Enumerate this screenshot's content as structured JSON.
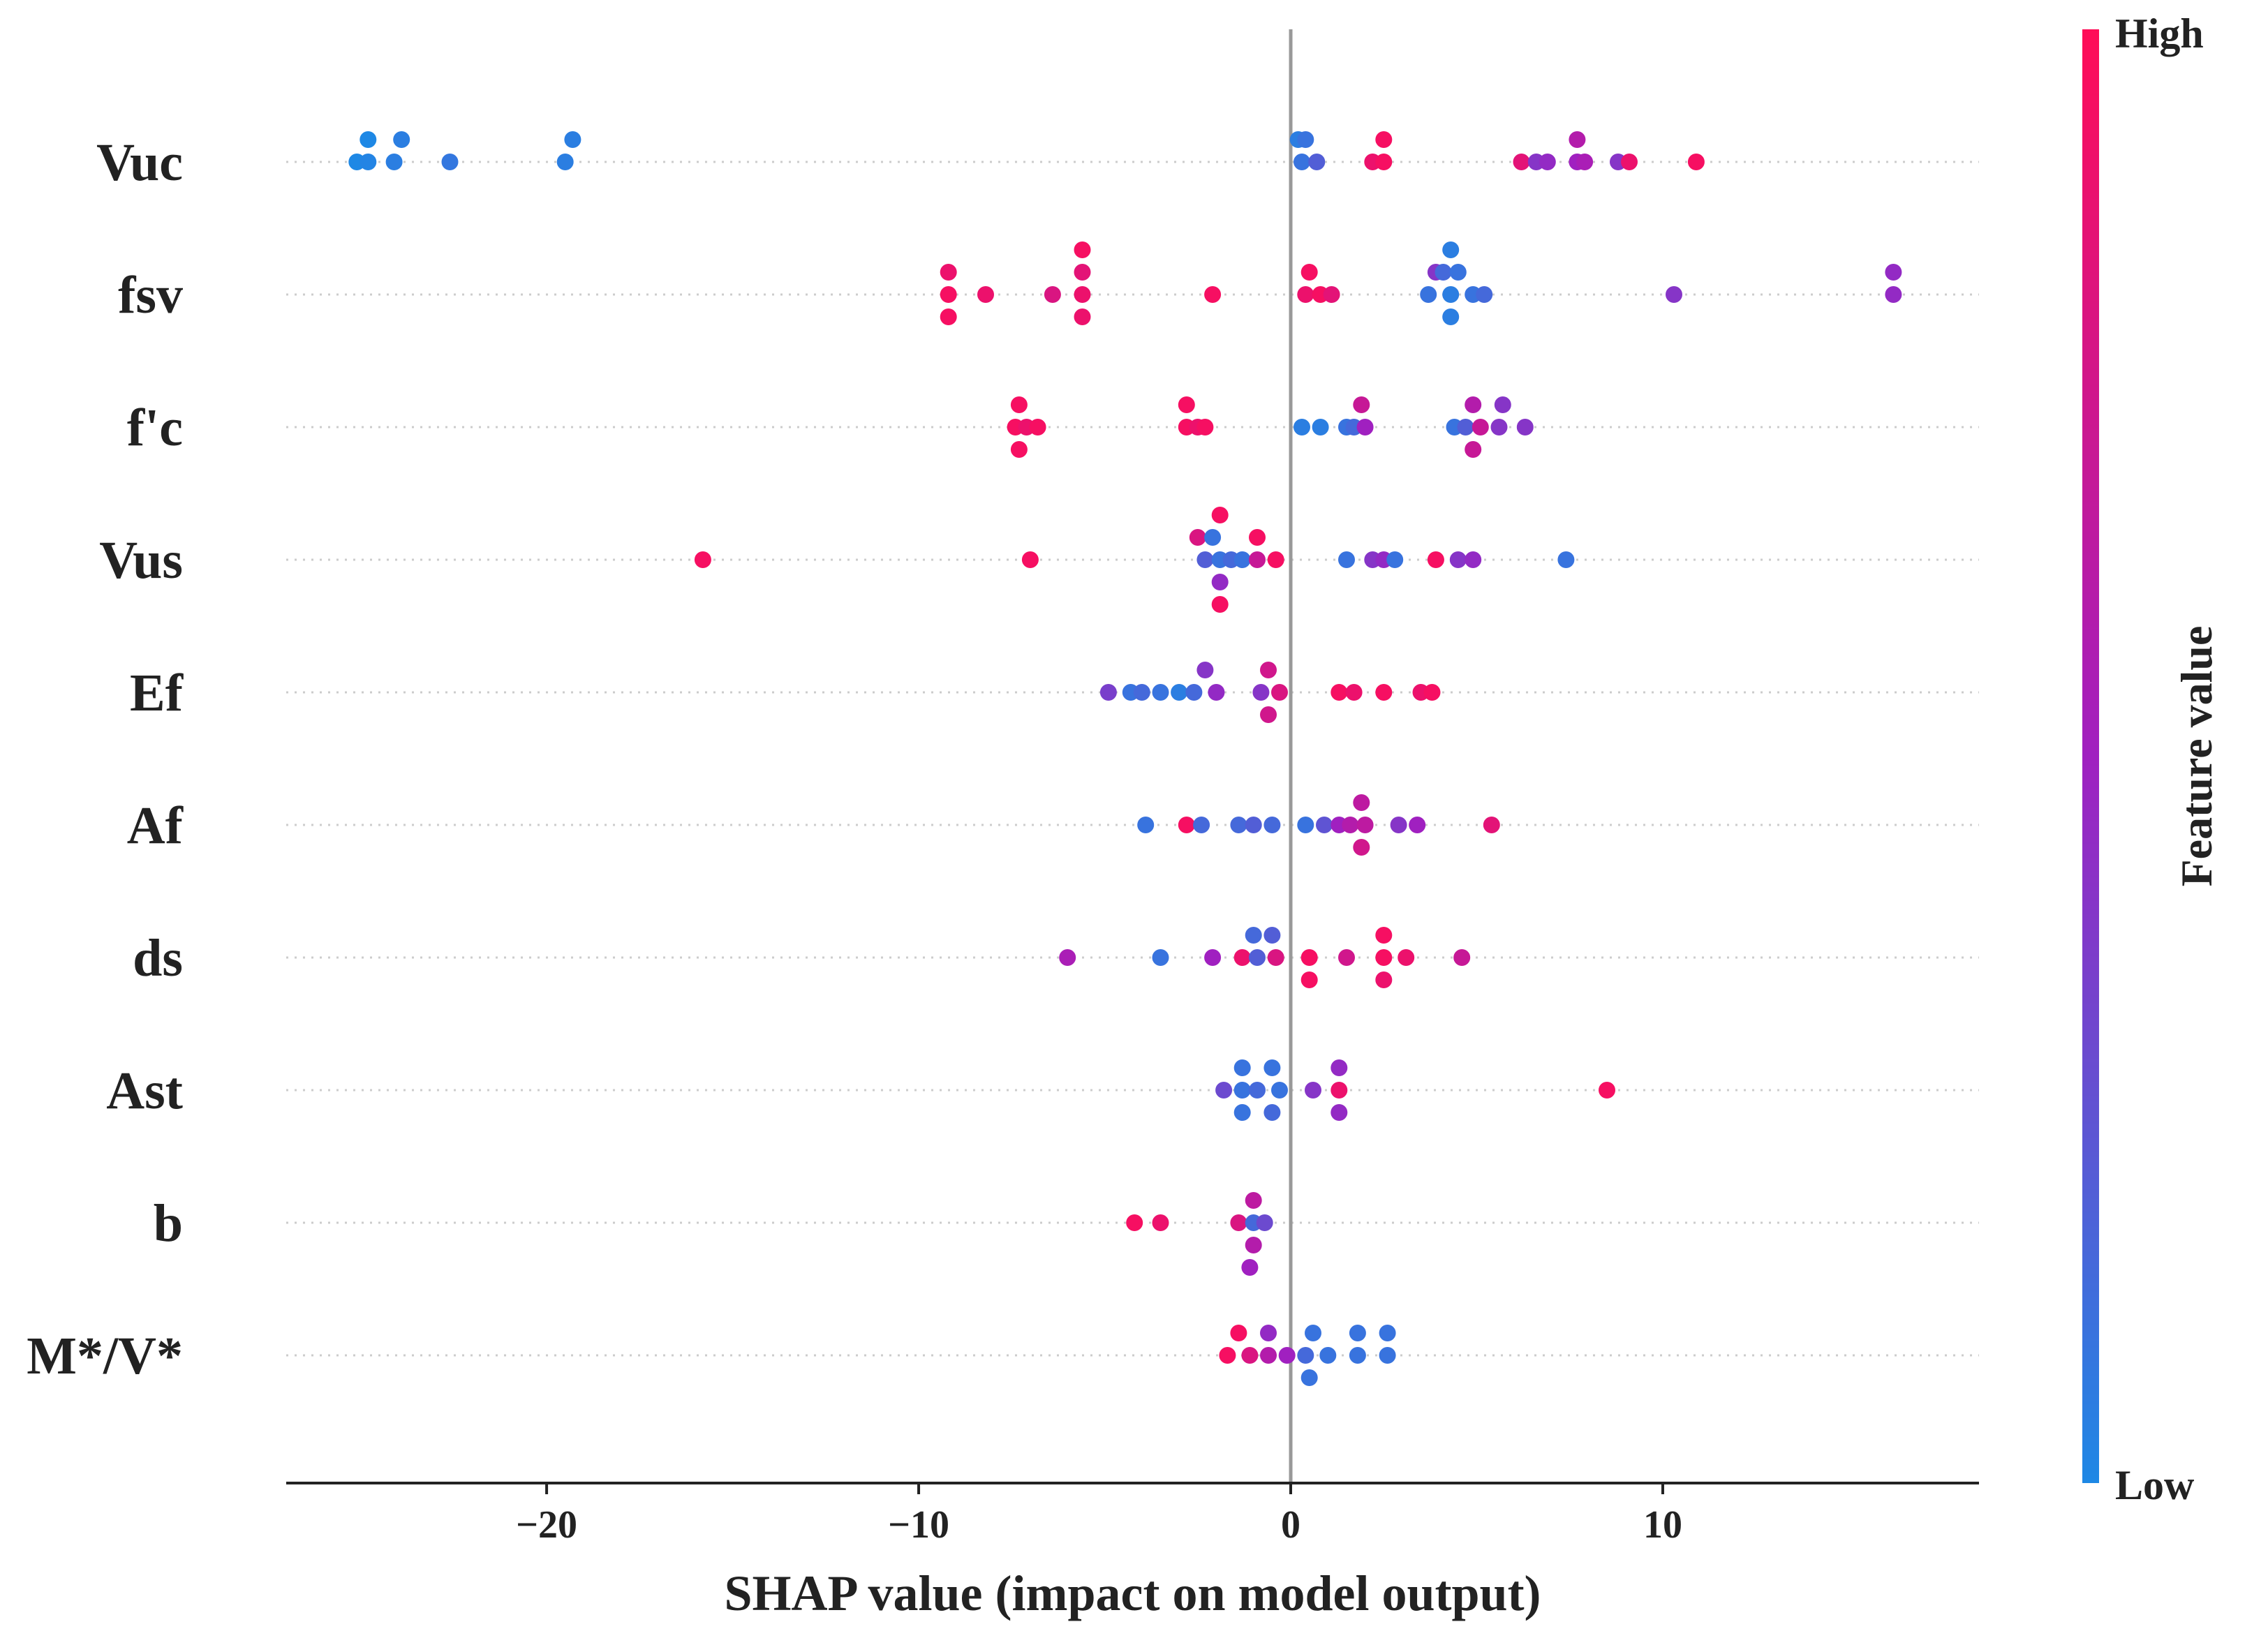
{
  "chart_data": {
    "type": "scatter",
    "subtype": "shap-beeswarm",
    "title": "",
    "xlabel": "SHAP value (impact on model output)",
    "ylabel": "",
    "xlim": [
      -27,
      18.5
    ],
    "xticks": [
      -20,
      -10,
      0,
      10
    ],
    "xtick_labels": [
      "−20",
      "−10",
      "0",
      "10"
    ],
    "grid": false,
    "colorbar": {
      "title": "Feature value",
      "high_label": "High",
      "low_label": "Low",
      "low_color": "#1e88e5",
      "high_color": "#ff0d57"
    },
    "colors": {
      "low": "#1e88e5",
      "mid": "#a020c0",
      "high": "#ff0d57",
      "zero_line": "#999999",
      "axis": "#222222"
    },
    "features": [
      {
        "name": "Vuc",
        "points": [
          {
            "x": -24.8,
            "o": -1,
            "v": 0.0
          },
          {
            "x": -23.9,
            "o": -1,
            "v": 0.05
          },
          {
            "x": -19.3,
            "o": -1,
            "v": 0.05
          },
          {
            "x": -25.1,
            "o": 0,
            "v": 0.0
          },
          {
            "x": -24.8,
            "o": 0,
            "v": 0.02
          },
          {
            "x": -24.1,
            "o": 0,
            "v": 0.05
          },
          {
            "x": -22.6,
            "o": 0,
            "v": 0.08
          },
          {
            "x": -19.5,
            "o": 0,
            "v": 0.05
          },
          {
            "x": 0.2,
            "o": -1,
            "v": 0.05
          },
          {
            "x": 0.4,
            "o": -1,
            "v": 0.1
          },
          {
            "x": 2.5,
            "o": -1,
            "v": 0.95
          },
          {
            "x": 7.7,
            "o": -1,
            "v": 0.6
          },
          {
            "x": 0.3,
            "o": 0,
            "v": 0.1
          },
          {
            "x": 0.7,
            "o": 0,
            "v": 0.2
          },
          {
            "x": 2.2,
            "o": 0,
            "v": 0.9
          },
          {
            "x": 2.5,
            "o": 0,
            "v": 0.95
          },
          {
            "x": 6.2,
            "o": 0,
            "v": 0.85
          },
          {
            "x": 6.6,
            "o": 0,
            "v": 0.4
          },
          {
            "x": 6.9,
            "o": 0,
            "v": 0.45
          },
          {
            "x": 7.7,
            "o": 0,
            "v": 0.5
          },
          {
            "x": 7.9,
            "o": 0,
            "v": 0.55
          },
          {
            "x": 8.8,
            "o": 0,
            "v": 0.4
          },
          {
            "x": 9.1,
            "o": 0,
            "v": 0.9
          },
          {
            "x": 10.9,
            "o": 0,
            "v": 0.95
          }
        ]
      },
      {
        "name": "fsv",
        "points": [
          {
            "x": -5.6,
            "o": -2,
            "v": 0.95
          },
          {
            "x": -9.2,
            "o": -1,
            "v": 0.9
          },
          {
            "x": -5.6,
            "o": -1,
            "v": 0.85
          },
          {
            "x": 0.5,
            "o": -1,
            "v": 0.95
          },
          {
            "x": 3.9,
            "o": -1,
            "v": 0.4
          },
          {
            "x": 16.2,
            "o": -1,
            "v": 0.45
          },
          {
            "x": 4.3,
            "o": -2,
            "v": 0.05
          },
          {
            "x": 4.1,
            "o": -1,
            "v": 0.15
          },
          {
            "x": 4.5,
            "o": -1,
            "v": 0.1
          },
          {
            "x": -9.2,
            "o": 0,
            "v": 0.95
          },
          {
            "x": -8.2,
            "o": 0,
            "v": 0.9
          },
          {
            "x": -6.4,
            "o": 0,
            "v": 0.8
          },
          {
            "x": -5.6,
            "o": 0,
            "v": 0.9
          },
          {
            "x": -2.1,
            "o": 0,
            "v": 0.95
          },
          {
            "x": 0.4,
            "o": 0,
            "v": 0.9
          },
          {
            "x": 0.8,
            "o": 0,
            "v": 0.95
          },
          {
            "x": 1.1,
            "o": 0,
            "v": 0.85
          },
          {
            "x": 3.7,
            "o": 0,
            "v": 0.1
          },
          {
            "x": 4.3,
            "o": 0,
            "v": 0.05
          },
          {
            "x": 4.9,
            "o": 0,
            "v": 0.1
          },
          {
            "x": 5.2,
            "o": 0,
            "v": 0.15
          },
          {
            "x": 10.3,
            "o": 0,
            "v": 0.4
          },
          {
            "x": 16.2,
            "o": 0,
            "v": 0.45
          },
          {
            "x": -9.2,
            "o": 1,
            "v": 0.95
          },
          {
            "x": -5.6,
            "o": 1,
            "v": 0.9
          },
          {
            "x": 4.3,
            "o": 1,
            "v": 0.05
          }
        ]
      },
      {
        "name": "f'c",
        "points": [
          {
            "x": -7.3,
            "o": -1,
            "v": 0.95
          },
          {
            "x": -2.8,
            "o": -1,
            "v": 0.95
          },
          {
            "x": 1.9,
            "o": -1,
            "v": 0.7
          },
          {
            "x": 4.9,
            "o": -1,
            "v": 0.6
          },
          {
            "x": 5.7,
            "o": -1,
            "v": 0.4
          },
          {
            "x": -7.4,
            "o": 0,
            "v": 0.95
          },
          {
            "x": -7.1,
            "o": 0,
            "v": 0.9
          },
          {
            "x": -6.8,
            "o": 0,
            "v": 0.95
          },
          {
            "x": -2.8,
            "o": 0,
            "v": 0.95
          },
          {
            "x": -2.5,
            "o": 0,
            "v": 0.9
          },
          {
            "x": -2.3,
            "o": 0,
            "v": 0.95
          },
          {
            "x": 0.3,
            "o": 0,
            "v": 0.05
          },
          {
            "x": 0.8,
            "o": 0,
            "v": 0.05
          },
          {
            "x": 1.5,
            "o": 0,
            "v": 0.1
          },
          {
            "x": 1.7,
            "o": 0,
            "v": 0.15
          },
          {
            "x": 2.0,
            "o": 0,
            "v": 0.5
          },
          {
            "x": 4.4,
            "o": 0,
            "v": 0.1
          },
          {
            "x": 4.7,
            "o": 0,
            "v": 0.2
          },
          {
            "x": 5.1,
            "o": 0,
            "v": 0.7
          },
          {
            "x": 5.6,
            "o": 0,
            "v": 0.4
          },
          {
            "x": 6.3,
            "o": 0,
            "v": 0.4
          },
          {
            "x": -7.3,
            "o": 1,
            "v": 0.95
          },
          {
            "x": 4.9,
            "o": 1,
            "v": 0.7
          }
        ]
      },
      {
        "name": "Vus",
        "points": [
          {
            "x": -1.9,
            "o": -2,
            "v": 0.95
          },
          {
            "x": -2.5,
            "o": -1,
            "v": 0.8
          },
          {
            "x": -2.1,
            "o": -1,
            "v": 0.1
          },
          {
            "x": -0.9,
            "o": -1,
            "v": 0.95
          },
          {
            "x": -15.8,
            "o": 0,
            "v": 0.95
          },
          {
            "x": -7.0,
            "o": 0,
            "v": 0.95
          },
          {
            "x": -2.3,
            "o": 0,
            "v": 0.2
          },
          {
            "x": -1.9,
            "o": 0,
            "v": 0.1
          },
          {
            "x": -1.6,
            "o": 0,
            "v": 0.15
          },
          {
            "x": -1.3,
            "o": 0,
            "v": 0.1
          },
          {
            "x": -0.9,
            "o": 0,
            "v": 0.7
          },
          {
            "x": -0.4,
            "o": 0,
            "v": 0.95
          },
          {
            "x": 1.5,
            "o": 0,
            "v": 0.1
          },
          {
            "x": 2.2,
            "o": 0,
            "v": 0.4
          },
          {
            "x": 2.5,
            "o": 0,
            "v": 0.45
          },
          {
            "x": 2.8,
            "o": 0,
            "v": 0.1
          },
          {
            "x": 3.9,
            "o": 0,
            "v": 0.95
          },
          {
            "x": 4.5,
            "o": 0,
            "v": 0.4
          },
          {
            "x": 4.9,
            "o": 0,
            "v": 0.45
          },
          {
            "x": 7.4,
            "o": 0,
            "v": 0.1
          },
          {
            "x": -1.9,
            "o": 1,
            "v": 0.45
          },
          {
            "x": -1.9,
            "o": 2,
            "v": 0.95
          }
        ]
      },
      {
        "name": "Ef",
        "points": [
          {
            "x": -2.3,
            "o": -1,
            "v": 0.4
          },
          {
            "x": -0.6,
            "o": -1,
            "v": 0.75
          },
          {
            "x": -4.9,
            "o": 0,
            "v": 0.35
          },
          {
            "x": -4.3,
            "o": 0,
            "v": 0.1
          },
          {
            "x": -4.0,
            "o": 0,
            "v": 0.15
          },
          {
            "x": -3.5,
            "o": 0,
            "v": 0.1
          },
          {
            "x": -3.0,
            "o": 0,
            "v": 0.05
          },
          {
            "x": -2.6,
            "o": 0,
            "v": 0.15
          },
          {
            "x": -2.0,
            "o": 0,
            "v": 0.45
          },
          {
            "x": -0.8,
            "o": 0,
            "v": 0.4
          },
          {
            "x": -0.3,
            "o": 0,
            "v": 0.8
          },
          {
            "x": 1.3,
            "o": 0,
            "v": 0.95
          },
          {
            "x": 1.7,
            "o": 0,
            "v": 0.9
          },
          {
            "x": 2.5,
            "o": 0,
            "v": 0.95
          },
          {
            "x": 3.5,
            "o": 0,
            "v": 0.9
          },
          {
            "x": 3.8,
            "o": 0,
            "v": 0.95
          },
          {
            "x": -0.6,
            "o": 1,
            "v": 0.75
          }
        ]
      },
      {
        "name": "Af",
        "points": [
          {
            "x": 1.9,
            "o": -1,
            "v": 0.65
          },
          {
            "x": -3.9,
            "o": 0,
            "v": 0.1
          },
          {
            "x": -2.8,
            "o": 0,
            "v": 0.95
          },
          {
            "x": -2.4,
            "o": 0,
            "v": 0.15
          },
          {
            "x": -1.4,
            "o": 0,
            "v": 0.15
          },
          {
            "x": -1.0,
            "o": 0,
            "v": 0.2
          },
          {
            "x": -0.5,
            "o": 0,
            "v": 0.15
          },
          {
            "x": 0.4,
            "o": 0,
            "v": 0.1
          },
          {
            "x": 0.9,
            "o": 0,
            "v": 0.25
          },
          {
            "x": 1.3,
            "o": 0,
            "v": 0.5
          },
          {
            "x": 1.6,
            "o": 0,
            "v": 0.6
          },
          {
            "x": 2.0,
            "o": 0,
            "v": 0.65
          },
          {
            "x": 2.9,
            "o": 0,
            "v": 0.4
          },
          {
            "x": 3.4,
            "o": 0,
            "v": 0.5
          },
          {
            "x": 5.4,
            "o": 0,
            "v": 0.85
          },
          {
            "x": 1.9,
            "o": 1,
            "v": 0.75
          }
        ]
      },
      {
        "name": "ds",
        "points": [
          {
            "x": 2.5,
            "o": -1,
            "v": 0.95
          },
          {
            "x": -1.0,
            "o": -1,
            "v": 0.15
          },
          {
            "x": -0.5,
            "o": -1,
            "v": 0.2
          },
          {
            "x": -6.0,
            "o": 0,
            "v": 0.55
          },
          {
            "x": -3.5,
            "o": 0,
            "v": 0.1
          },
          {
            "x": -2.1,
            "o": 0,
            "v": 0.5
          },
          {
            "x": -1.3,
            "o": 0,
            "v": 0.9
          },
          {
            "x": -0.9,
            "o": 0,
            "v": 0.2
          },
          {
            "x": -0.4,
            "o": 0,
            "v": 0.8
          },
          {
            "x": 0.5,
            "o": 0,
            "v": 0.95
          },
          {
            "x": 1.5,
            "o": 0,
            "v": 0.75
          },
          {
            "x": 2.5,
            "o": 0,
            "v": 0.95
          },
          {
            "x": 3.1,
            "o": 0,
            "v": 0.9
          },
          {
            "x": 4.6,
            "o": 0,
            "v": 0.7
          },
          {
            "x": 0.5,
            "o": 1,
            "v": 0.95
          },
          {
            "x": 2.5,
            "o": 1,
            "v": 0.9
          }
        ]
      },
      {
        "name": "Ast",
        "points": [
          {
            "x": -1.3,
            "o": -1,
            "v": 0.1
          },
          {
            "x": -0.5,
            "o": -1,
            "v": 0.1
          },
          {
            "x": 1.3,
            "o": -1,
            "v": 0.45
          },
          {
            "x": -1.8,
            "o": 0,
            "v": 0.3
          },
          {
            "x": -1.3,
            "o": 0,
            "v": 0.1
          },
          {
            "x": -0.9,
            "o": 0,
            "v": 0.15
          },
          {
            "x": -0.3,
            "o": 0,
            "v": 0.1
          },
          {
            "x": 0.6,
            "o": 0,
            "v": 0.4
          },
          {
            "x": 1.3,
            "o": 0,
            "v": 0.9
          },
          {
            "x": 8.5,
            "o": 0,
            "v": 0.95
          },
          {
            "x": -1.3,
            "o": 1,
            "v": 0.1
          },
          {
            "x": -0.5,
            "o": 1,
            "v": 0.15
          },
          {
            "x": 1.3,
            "o": 1,
            "v": 0.45
          }
        ]
      },
      {
        "name": "b",
        "points": [
          {
            "x": -1.0,
            "o": -1,
            "v": 0.65
          },
          {
            "x": -4.2,
            "o": 0,
            "v": 0.95
          },
          {
            "x": -3.5,
            "o": 0,
            "v": 0.9
          },
          {
            "x": -1.4,
            "o": 0,
            "v": 0.8
          },
          {
            "x": -1.0,
            "o": 0,
            "v": 0.15
          },
          {
            "x": -0.7,
            "o": 0,
            "v": 0.3
          },
          {
            "x": -1.0,
            "o": 1,
            "v": 0.6
          },
          {
            "x": -1.1,
            "o": 2,
            "v": 0.5
          }
        ]
      },
      {
        "name": "M*/V*",
        "points": [
          {
            "x": -1.4,
            "o": -1,
            "v": 0.95
          },
          {
            "x": -0.6,
            "o": -1,
            "v": 0.45
          },
          {
            "x": 0.6,
            "o": -1,
            "v": 0.1
          },
          {
            "x": 1.8,
            "o": -1,
            "v": 0.1
          },
          {
            "x": 2.6,
            "o": -1,
            "v": 0.1
          },
          {
            "x": -1.7,
            "o": 0,
            "v": 0.95
          },
          {
            "x": -1.1,
            "o": 0,
            "v": 0.8
          },
          {
            "x": -0.6,
            "o": 0,
            "v": 0.6
          },
          {
            "x": -0.1,
            "o": 0,
            "v": 0.5
          },
          {
            "x": 0.4,
            "o": 0,
            "v": 0.15
          },
          {
            "x": 1.0,
            "o": 0,
            "v": 0.1
          },
          {
            "x": 1.8,
            "o": 0,
            "v": 0.1
          },
          {
            "x": 2.6,
            "o": 0,
            "v": 0.1
          },
          {
            "x": 0.5,
            "o": 1,
            "v": 0.1
          }
        ]
      }
    ]
  }
}
